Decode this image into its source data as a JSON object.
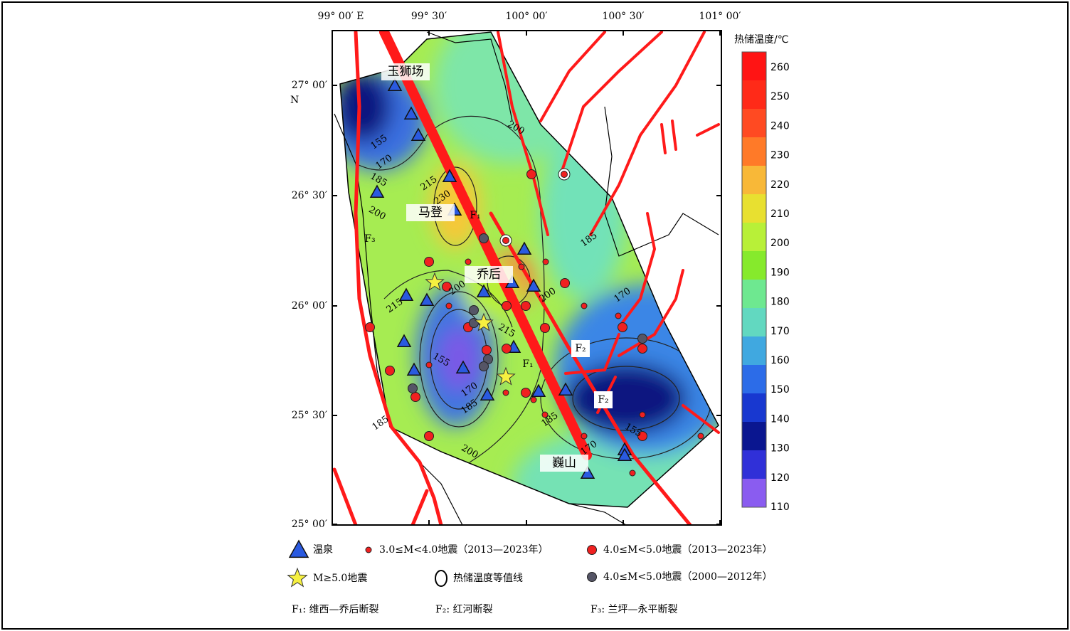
{
  "map": {
    "x_axis_labels": [
      "99° 00′ E",
      "99° 30′",
      "100° 00′",
      "100° 30′",
      "101° 00′"
    ],
    "y_axis_labels": [
      "27° 00′",
      "26° 30′",
      "26° 00′",
      "25° 30′",
      "25° 00′"
    ],
    "y_axis_hemisphere": "N",
    "places": [
      "玉狮场",
      "马登",
      "乔后",
      "巍山"
    ],
    "fault_labels": [
      "F₁",
      "F₁",
      "F₂",
      "F₂",
      "F₃"
    ],
    "contour_labels": [
      "200",
      "170",
      "155",
      "185",
      "215",
      "230",
      "200",
      "215",
      "200",
      "215",
      "185",
      "200",
      "155",
      "170",
      "185",
      "200",
      "185",
      "170",
      "155",
      "170",
      "185"
    ]
  },
  "colorbar": {
    "title": "热储温度/℃",
    "ticks": [
      260,
      250,
      240,
      230,
      220,
      210,
      200,
      190,
      180,
      170,
      160,
      150,
      140,
      130,
      120,
      110
    ],
    "colors": [
      "#ff1414",
      "#ff2a18",
      "#ff4a22",
      "#ff7a28",
      "#f8b838",
      "#e8e030",
      "#b8f038",
      "#86ea2c",
      "#6ee890",
      "#62d8c0",
      "#40a8e0",
      "#2c6ce8",
      "#1838d0",
      "#0a1690",
      "#3030d8",
      "#8a5cf0"
    ]
  },
  "legend": {
    "items": [
      "温泉",
      "3.0≤M<4.0地震（2013—2023年）",
      "4.0≤M<5.0地震（2013—2023年）",
      "M≥5.0地震",
      "热储温度等值线",
      "4.0≤M<5.0地震（2000—2012年）"
    ],
    "faults": [
      "F₁: 维西—乔后断裂",
      "F₂: 红河断裂",
      "F₃: 兰坪—永平断裂"
    ]
  }
}
